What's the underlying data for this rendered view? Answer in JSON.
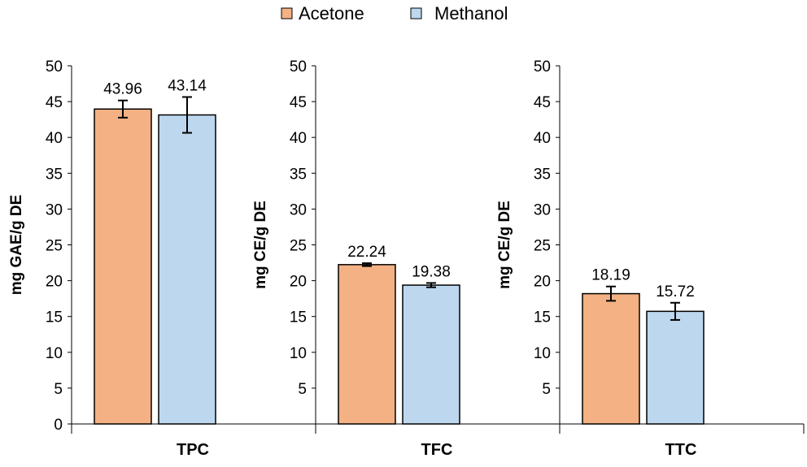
{
  "chart_data": {
    "type": "bar",
    "legend": {
      "position": "top-center",
      "entries": [
        "Acetone",
        "Methanol"
      ]
    },
    "colors": {
      "Acetone": "#F4B183",
      "Methanol": "#BDD7EE",
      "edge": "#000000"
    },
    "series_names": [
      "Acetone",
      "Methanol"
    ],
    "ylim": [
      0,
      50
    ],
    "yticks": [
      0,
      5,
      10,
      15,
      20,
      25,
      30,
      35,
      40,
      45,
      50
    ],
    "panels": [
      {
        "category": "TPC",
        "ylabel": "mg GAE/g DE",
        "show_zero": true,
        "values": [
          43.96,
          43.14
        ],
        "labels": [
          "43.96",
          "43.14"
        ],
        "errors": [
          1.2,
          2.5
        ]
      },
      {
        "category": "TFC",
        "ylabel": "mg CE/g DE",
        "show_zero": false,
        "values": [
          22.24,
          19.38
        ],
        "labels": [
          "22.24",
          "19.38"
        ],
        "errors": [
          0.2,
          0.3
        ]
      },
      {
        "category": "TTC",
        "ylabel": "mg CE/g DE",
        "show_zero": false,
        "values": [
          18.19,
          15.72
        ],
        "labels": [
          "18.19",
          "15.72"
        ],
        "errors": [
          1.0,
          1.2
        ]
      }
    ]
  }
}
